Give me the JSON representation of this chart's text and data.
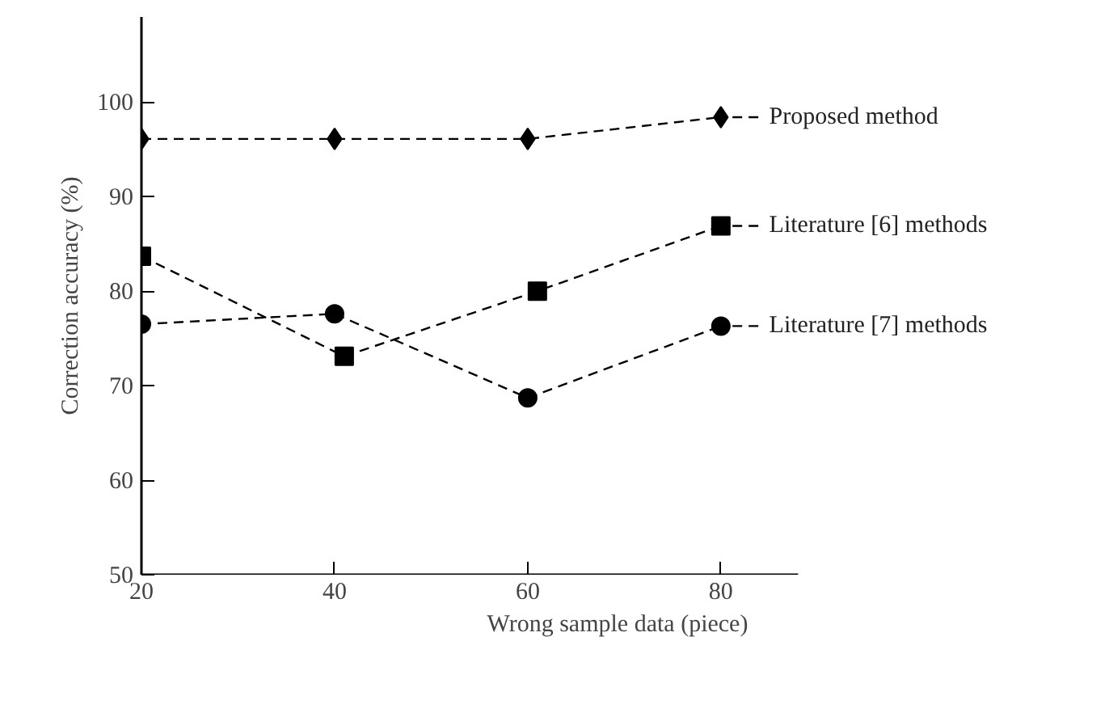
{
  "chart_data": {
    "type": "line",
    "xlabel": "Wrong sample data (piece)",
    "ylabel": "Correction accuracy (%)",
    "xlim": [
      20,
      88
    ],
    "ylim": [
      50,
      109
    ],
    "xticks": [
      20,
      40,
      60,
      80
    ],
    "yticks": [
      50,
      60,
      70,
      80,
      90,
      100
    ],
    "grid": false,
    "legend": "right",
    "line_style": "dashed",
    "series": [
      {
        "name": "Proposed method",
        "color": "#000000",
        "marker": "diamond",
        "x": [
          20,
          40,
          60,
          80
        ],
        "values": [
          96.1,
          96.1,
          96.1,
          98.4
        ]
      },
      {
        "name": "Literature [6] methods",
        "color": "#000000",
        "marker": "square",
        "x": [
          20,
          41,
          61,
          80
        ],
        "values": [
          83.7,
          73.1,
          80,
          86.9
        ]
      },
      {
        "name": "Literature [7] methods",
        "color": "#000000",
        "marker": "circle",
        "x": [
          20,
          40,
          60,
          80
        ],
        "values": [
          76.5,
          77.6,
          68.7,
          76.3
        ]
      }
    ]
  }
}
